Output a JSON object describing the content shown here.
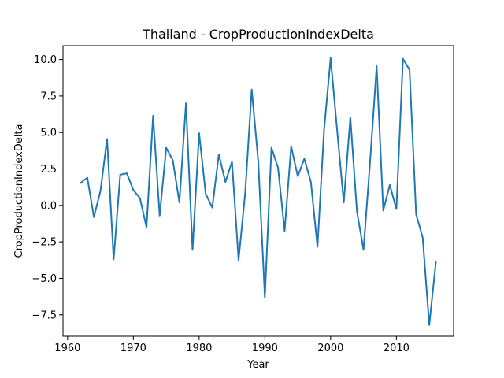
{
  "chart_data": {
    "type": "line",
    "title": "Thailand - CropProductionIndexDelta",
    "xlabel": "Year",
    "ylabel": "CropProductionIndexDelta",
    "xlim": [
      1959.3,
      2018.7
    ],
    "ylim": [
      -8.97,
      10.95
    ],
    "xticks": [
      1960,
      1970,
      1980,
      1990,
      2000,
      2010
    ],
    "yticks": [
      -7.5,
      -5.0,
      -2.5,
      0.0,
      2.5,
      5.0,
      7.5,
      10.0
    ],
    "ytick_labels": [
      "−7.5",
      "−5.0",
      "−2.5",
      "0.0",
      "2.5",
      "5.0",
      "7.5",
      "10.0"
    ],
    "grid": false,
    "series": [
      {
        "color": "#1f77b4",
        "x": [
          1962,
          1963,
          1964,
          1965,
          1966,
          1967,
          1968,
          1969,
          1970,
          1971,
          1972,
          1973,
          1974,
          1975,
          1976,
          1977,
          1978,
          1979,
          1980,
          1981,
          1982,
          1983,
          1984,
          1985,
          1986,
          1987,
          1988,
          1989,
          1990,
          1991,
          1992,
          1993,
          1994,
          1995,
          1996,
          1997,
          1998,
          1999,
          2000,
          2001,
          2002,
          2003,
          2004,
          2005,
          2006,
          2007,
          2008,
          2009,
          2010,
          2011,
          2012,
          2013,
          2014,
          2015,
          2016
        ],
        "y": [
          1.55,
          1.9,
          -0.8,
          1.0,
          4.55,
          -3.7,
          2.1,
          2.2,
          1.05,
          0.5,
          -1.5,
          6.15,
          -0.7,
          3.95,
          3.1,
          0.2,
          7.0,
          -3.05,
          4.95,
          0.8,
          -0.15,
          3.5,
          1.6,
          3.0,
          -3.75,
          0.8,
          7.95,
          3.0,
          -6.3,
          3.95,
          2.6,
          -1.75,
          4.05,
          2.0,
          3.2,
          1.6,
          -2.85,
          5.15,
          10.1,
          5.1,
          0.2,
          6.05,
          -0.4,
          -3.05,
          3.0,
          9.55,
          -0.35,
          1.4,
          -0.25,
          10.05,
          9.3,
          -0.6,
          -2.2,
          -8.2,
          -3.9
        ]
      }
    ]
  }
}
